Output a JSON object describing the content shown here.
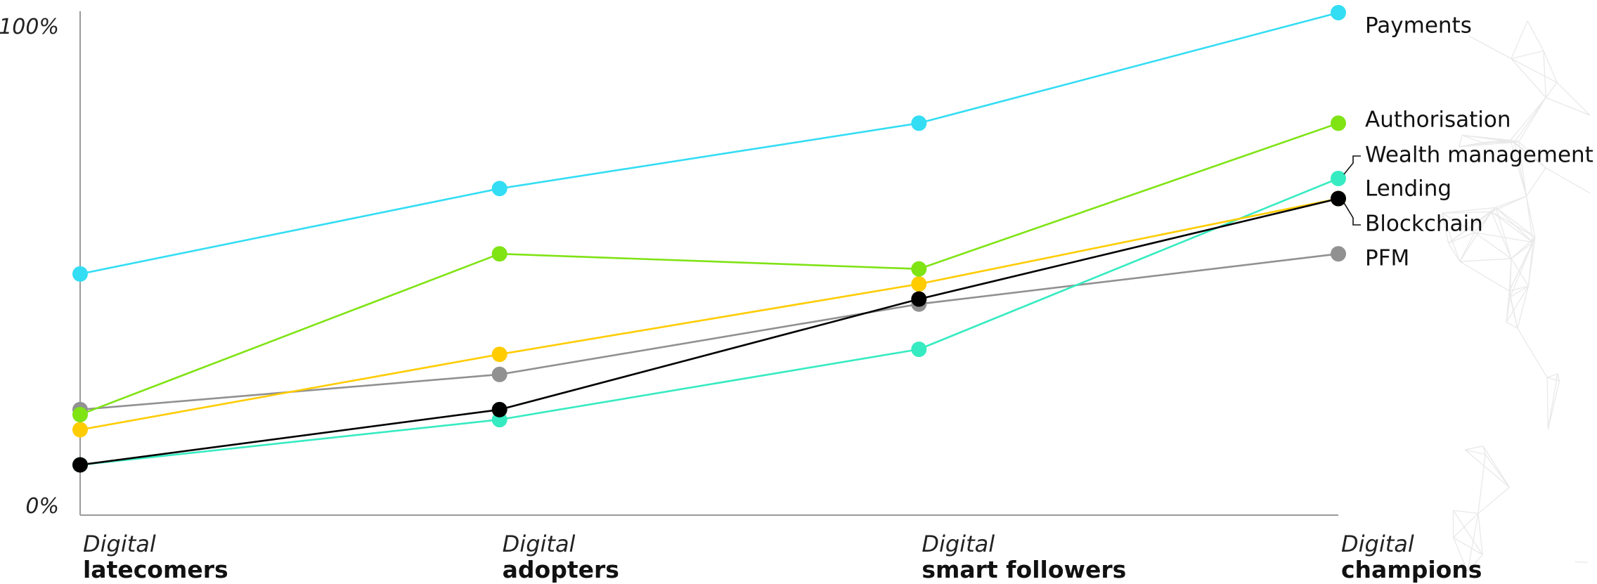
{
  "chart_data": {
    "type": "line",
    "categories": [
      {
        "prefix": "Digital",
        "name": "latecomers"
      },
      {
        "prefix": "Digital",
        "name": "adopters"
      },
      {
        "prefix": "Digital",
        "name": "smart followers"
      },
      {
        "prefix": "Digital",
        "name": "champions"
      }
    ],
    "y_tick_labels": {
      "max": "100%",
      "min": "0%"
    },
    "ylim": [
      0,
      100
    ],
    "grid": false,
    "legend": "direct labels at right end of lines",
    "series": [
      {
        "name": "Payments",
        "color": "#33DDF4",
        "values": [
          48,
          65,
          78,
          100
        ]
      },
      {
        "name": "Authorisation",
        "color": "#7FE314",
        "values": [
          20,
          52,
          49,
          78
        ]
      },
      {
        "name": "Wealth management",
        "color": "#36EBC1",
        "values": [
          10,
          19,
          33,
          67
        ]
      },
      {
        "name": "Lending",
        "color": "#FFCC00",
        "values": [
          17,
          32,
          46,
          63
        ]
      },
      {
        "name": "Blockchain",
        "color": "#000000",
        "values": [
          10,
          21,
          43,
          63
        ]
      },
      {
        "name": "PFM",
        "color": "#919191",
        "values": [
          21,
          28,
          42,
          52
        ]
      }
    ]
  }
}
